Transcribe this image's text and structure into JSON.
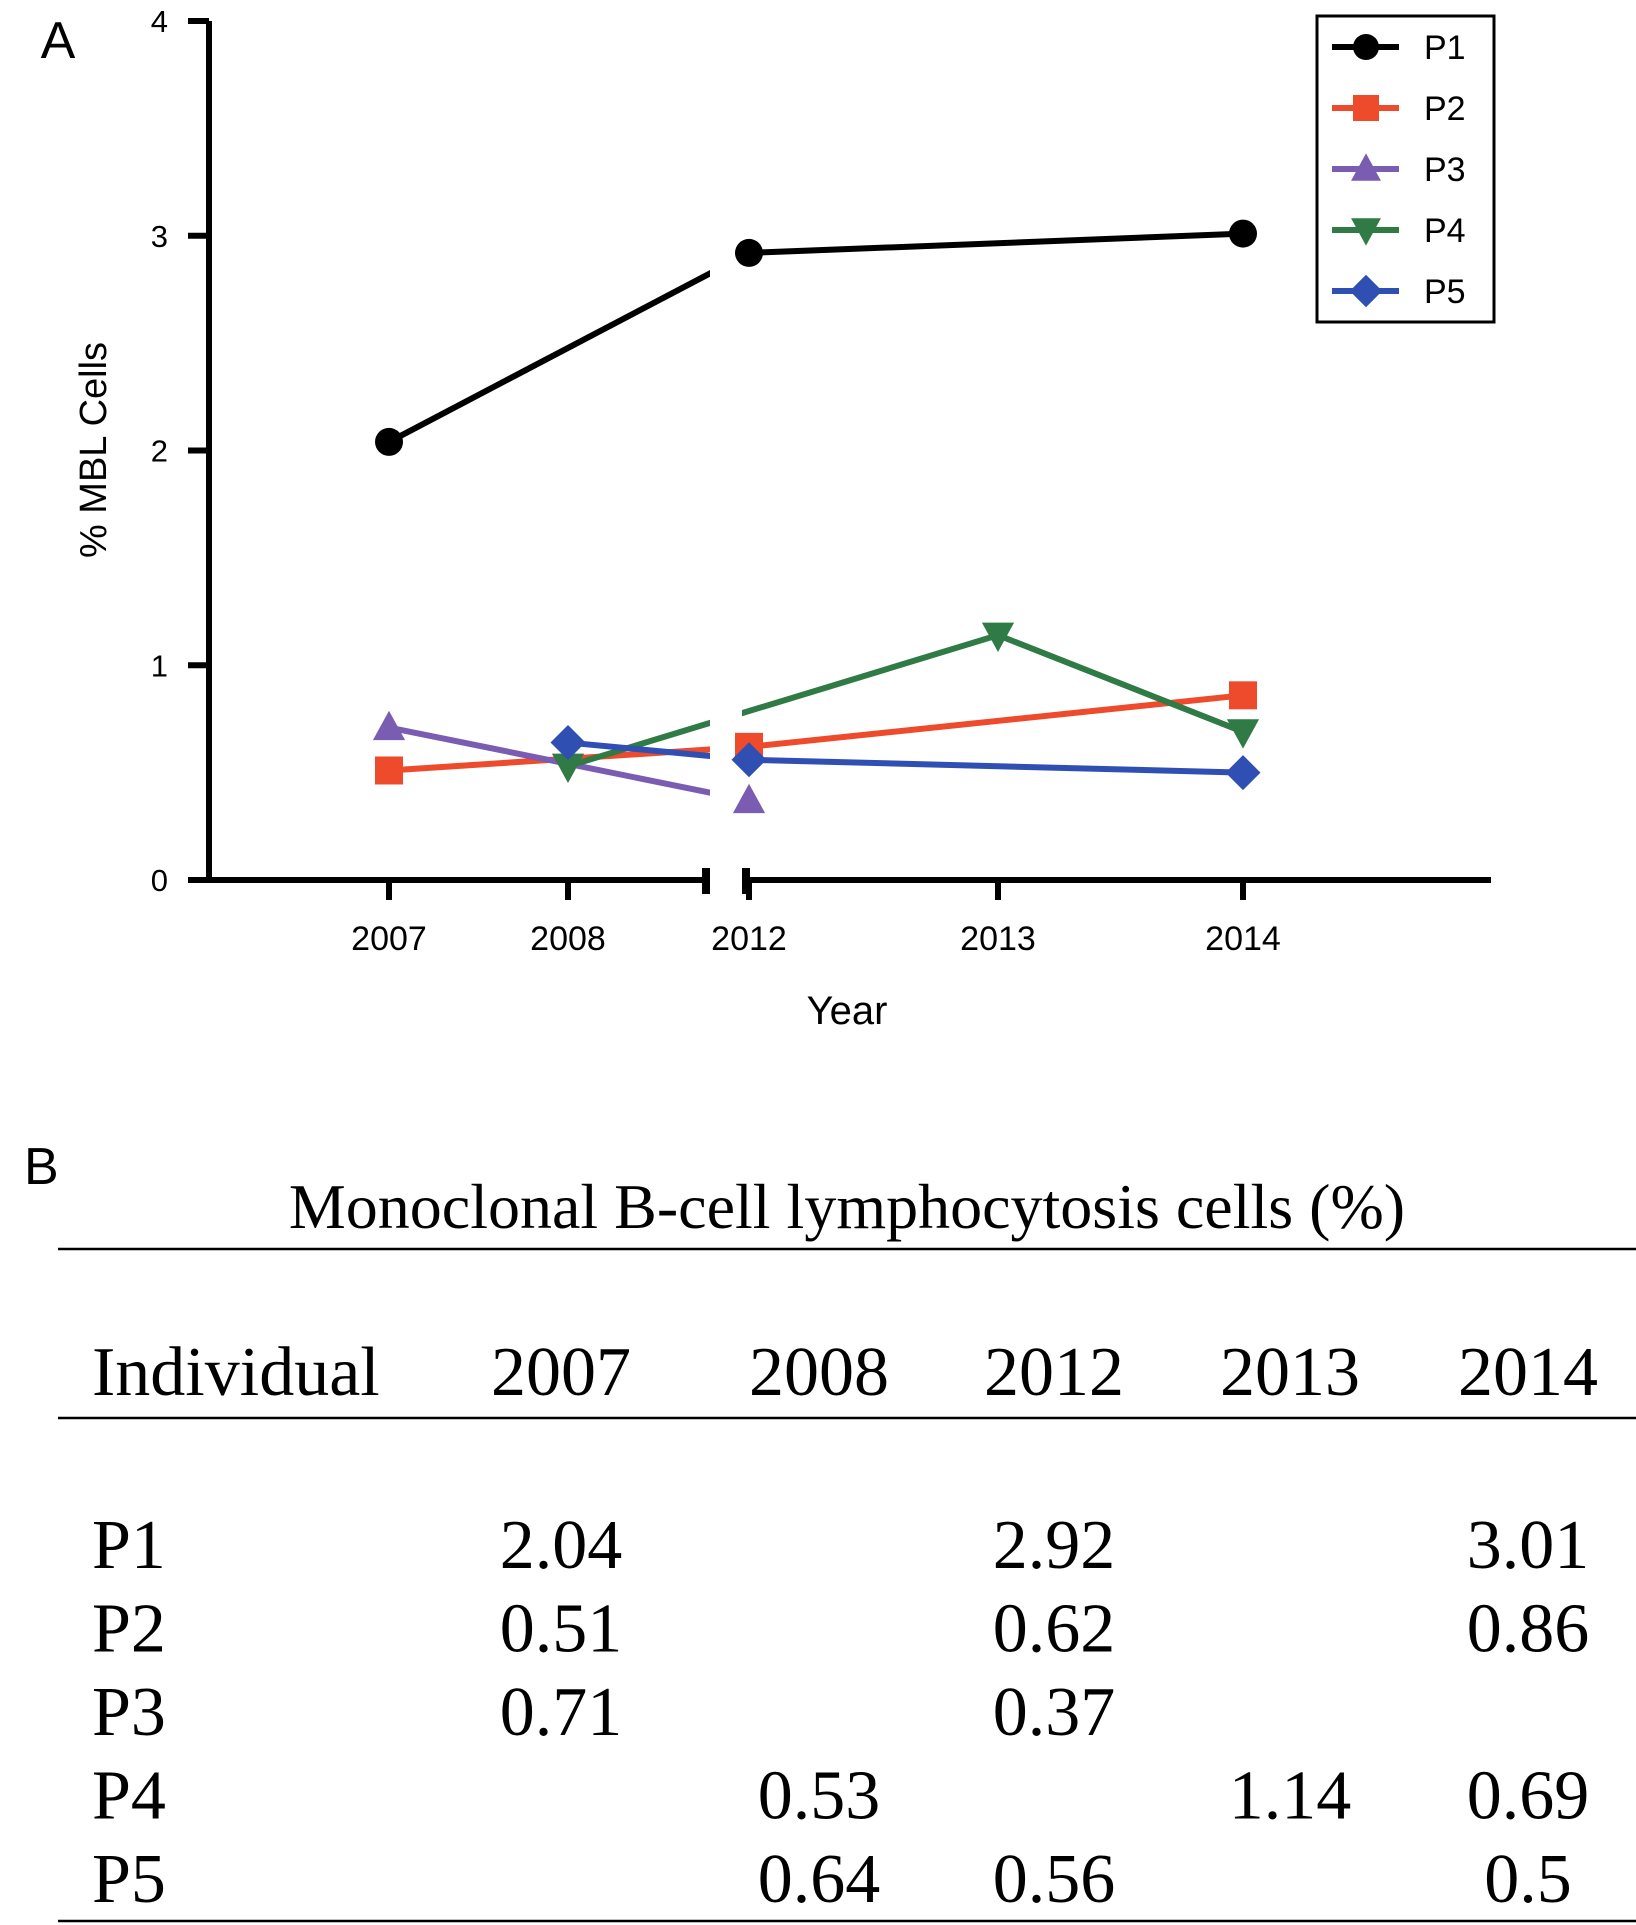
{
  "chart_data": {
    "type": "line",
    "panel_label": "A",
    "x_label": "Year",
    "y_label": "% MBL Cells",
    "categories": [
      "2007",
      "2008",
      "2012",
      "2013",
      "2014"
    ],
    "axis_break": true,
    "ylim": [
      0,
      4
    ],
    "yticks": [
      0,
      1,
      2,
      3,
      4
    ],
    "legend": "top-right",
    "series": [
      {
        "name": "P1",
        "color": "#000000",
        "marker": "circle",
        "values": [
          2.04,
          null,
          2.92,
          null,
          3.01
        ]
      },
      {
        "name": "P2",
        "color": "#ee4a2c",
        "marker": "square",
        "values": [
          0.51,
          null,
          0.62,
          null,
          0.86
        ]
      },
      {
        "name": "P3",
        "color": "#7a5cb2",
        "marker": "triangle-up",
        "values": [
          0.71,
          null,
          0.37,
          null,
          null
        ]
      },
      {
        "name": "P4",
        "color": "#2f7a45",
        "marker": "triangle-down",
        "values": [
          null,
          0.53,
          null,
          1.14,
          0.69
        ]
      },
      {
        "name": "P5",
        "color": "#2f4fb3",
        "marker": "diamond",
        "values": [
          null,
          0.64,
          0.56,
          null,
          0.5
        ]
      }
    ]
  },
  "table": {
    "panel_label": "B",
    "title": "Monoclonal B-cell lymphocytosis cells (%)",
    "columns": [
      "Individual",
      "2007",
      "2008",
      "2012",
      "2013",
      "2014"
    ],
    "rows": [
      [
        "P1",
        "2.04",
        null,
        "2.92",
        null,
        "3.01"
      ],
      [
        "P2",
        "0.51",
        null,
        "0.62",
        null,
        "0.86"
      ],
      [
        "P3",
        "0.71",
        null,
        "0.37",
        null,
        null
      ],
      [
        "P4",
        null,
        "0.53",
        null,
        "1.14",
        "0.69"
      ],
      [
        "P5",
        null,
        "0.64",
        "0.56",
        null,
        "0.5"
      ]
    ]
  }
}
